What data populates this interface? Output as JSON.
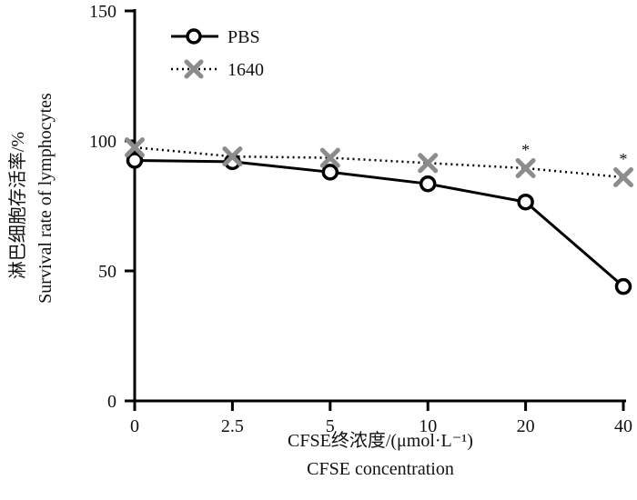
{
  "chart_data": {
    "type": "line",
    "title": "",
    "xlabel_cn": "CFSE终浓度/(μmol·L⁻¹)",
    "xlabel_en": "CFSE concentration",
    "ylabel_cn": "淋巴细胞存活率/%",
    "ylabel_en": "Survival rate of lymphocytes",
    "categories": [
      "0",
      "2.5",
      "5",
      "10",
      "20",
      "40"
    ],
    "ylim": [
      0,
      150
    ],
    "yticks": [
      0,
      50,
      100,
      150
    ],
    "legend_position": "top-left",
    "series": [
      {
        "name": "PBS",
        "marker": "open-circle",
        "line": "solid",
        "color": "#000000",
        "values": [
          92.5,
          92,
          88,
          83.5,
          76.5,
          44
        ]
      },
      {
        "name": "1640",
        "marker": "x",
        "line": "dotted",
        "color": "#8c8c8c",
        "values": [
          97.5,
          94,
          93.5,
          91.5,
          89.5,
          86
        ]
      }
    ],
    "annotations": [
      {
        "category": "20",
        "text": "*"
      },
      {
        "category": "40",
        "text": "*"
      }
    ]
  }
}
